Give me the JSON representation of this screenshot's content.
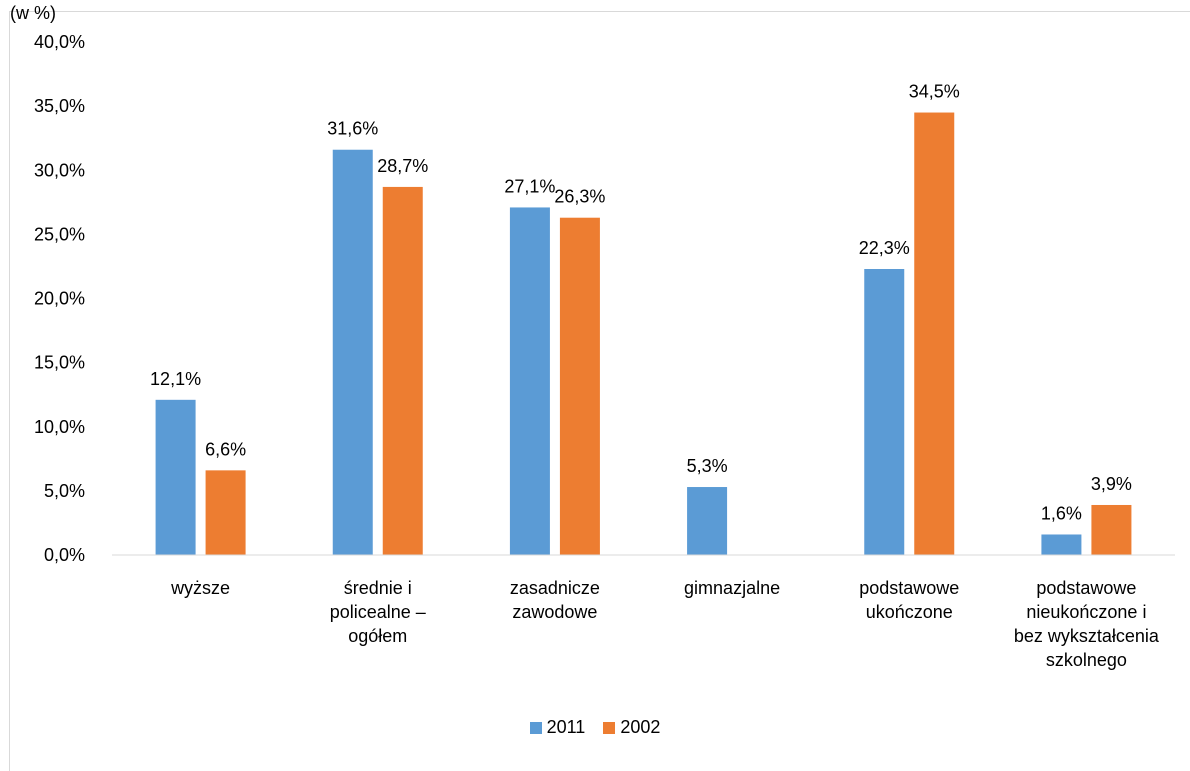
{
  "unit_label": "(w %)",
  "chart_data": {
    "type": "bar",
    "categories": [
      "wyższe",
      "średnie i policealne – ogółem",
      "zasadnicze zawodowe",
      "gimnazjalne",
      "podstawowe ukończone",
      "podstawowe nieukończone i bez wykształcenia szkolnego"
    ],
    "category_lines": [
      [
        "wyższe"
      ],
      [
        "średnie i",
        "policealne –",
        "ogółem"
      ],
      [
        "zasadnicze",
        "zawodowe"
      ],
      [
        "gimnazjalne"
      ],
      [
        "podstawowe",
        "ukończone"
      ],
      [
        "podstawowe",
        "nieukończone i",
        "bez wykształcenia",
        "szkolnego"
      ]
    ],
    "series": [
      {
        "name": "2011",
        "color": "#5b9bd5",
        "values": [
          12.1,
          31.6,
          27.1,
          5.3,
          22.3,
          1.6
        ],
        "labels": [
          "12,1%",
          "31,6%",
          "27,1%",
          "5,3%",
          "22,3%",
          "1,6%"
        ]
      },
      {
        "name": "2002",
        "color": "#ed7d31",
        "values": [
          6.6,
          28.7,
          26.3,
          null,
          34.5,
          3.9
        ],
        "labels": [
          "6,6%",
          "28,7%",
          "26,3%",
          "",
          "34,5%",
          "3,9%"
        ]
      }
    ],
    "ylim": [
      0,
      40
    ],
    "yticks": [
      0,
      5,
      10,
      15,
      20,
      25,
      30,
      35,
      40
    ],
    "ytick_labels": [
      "0,0%",
      "5,0%",
      "10,0%",
      "15,0%",
      "20,0%",
      "25,0%",
      "30,0%",
      "35,0%",
      "40,0%"
    ],
    "grid": false,
    "legend_position": "bottom"
  }
}
